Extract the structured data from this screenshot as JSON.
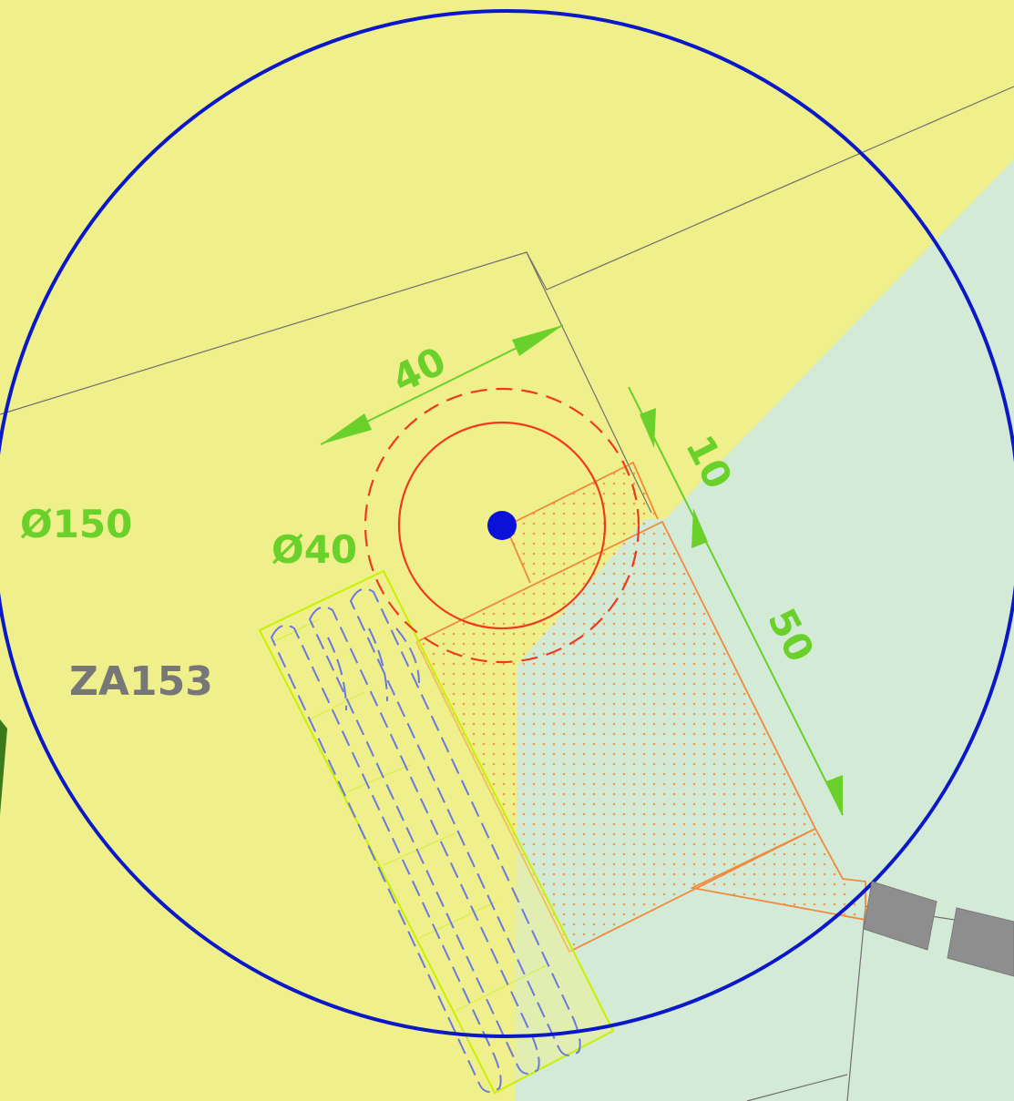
{
  "drawing": {
    "site_label": "ZA153",
    "outer_diameter_label": "Ø150",
    "inner_diameter_label": "Ø40",
    "dim_top": "40",
    "dim_side_short": "10",
    "dim_side_long": "50"
  },
  "colors": {
    "background_yellow": "#efef8c",
    "zone_green": "#d2ead6",
    "outer_circle": "#0a18c8",
    "center_point": "#0a12d8",
    "red_circle": "#ee3b20",
    "orange_outline": "#f08a3c",
    "orange_dots": "#f29a4a",
    "dimension_green": "#6ad12a",
    "bench_outline": "#c8f000",
    "dashed_blue": "#6a78e0",
    "paver_gray": "#8e8e8e",
    "thin_line": "#6f6f6f",
    "site_label": "#777777"
  },
  "icons": {
    "center": "filled-circle",
    "dimension_ends": "arrowheads"
  }
}
